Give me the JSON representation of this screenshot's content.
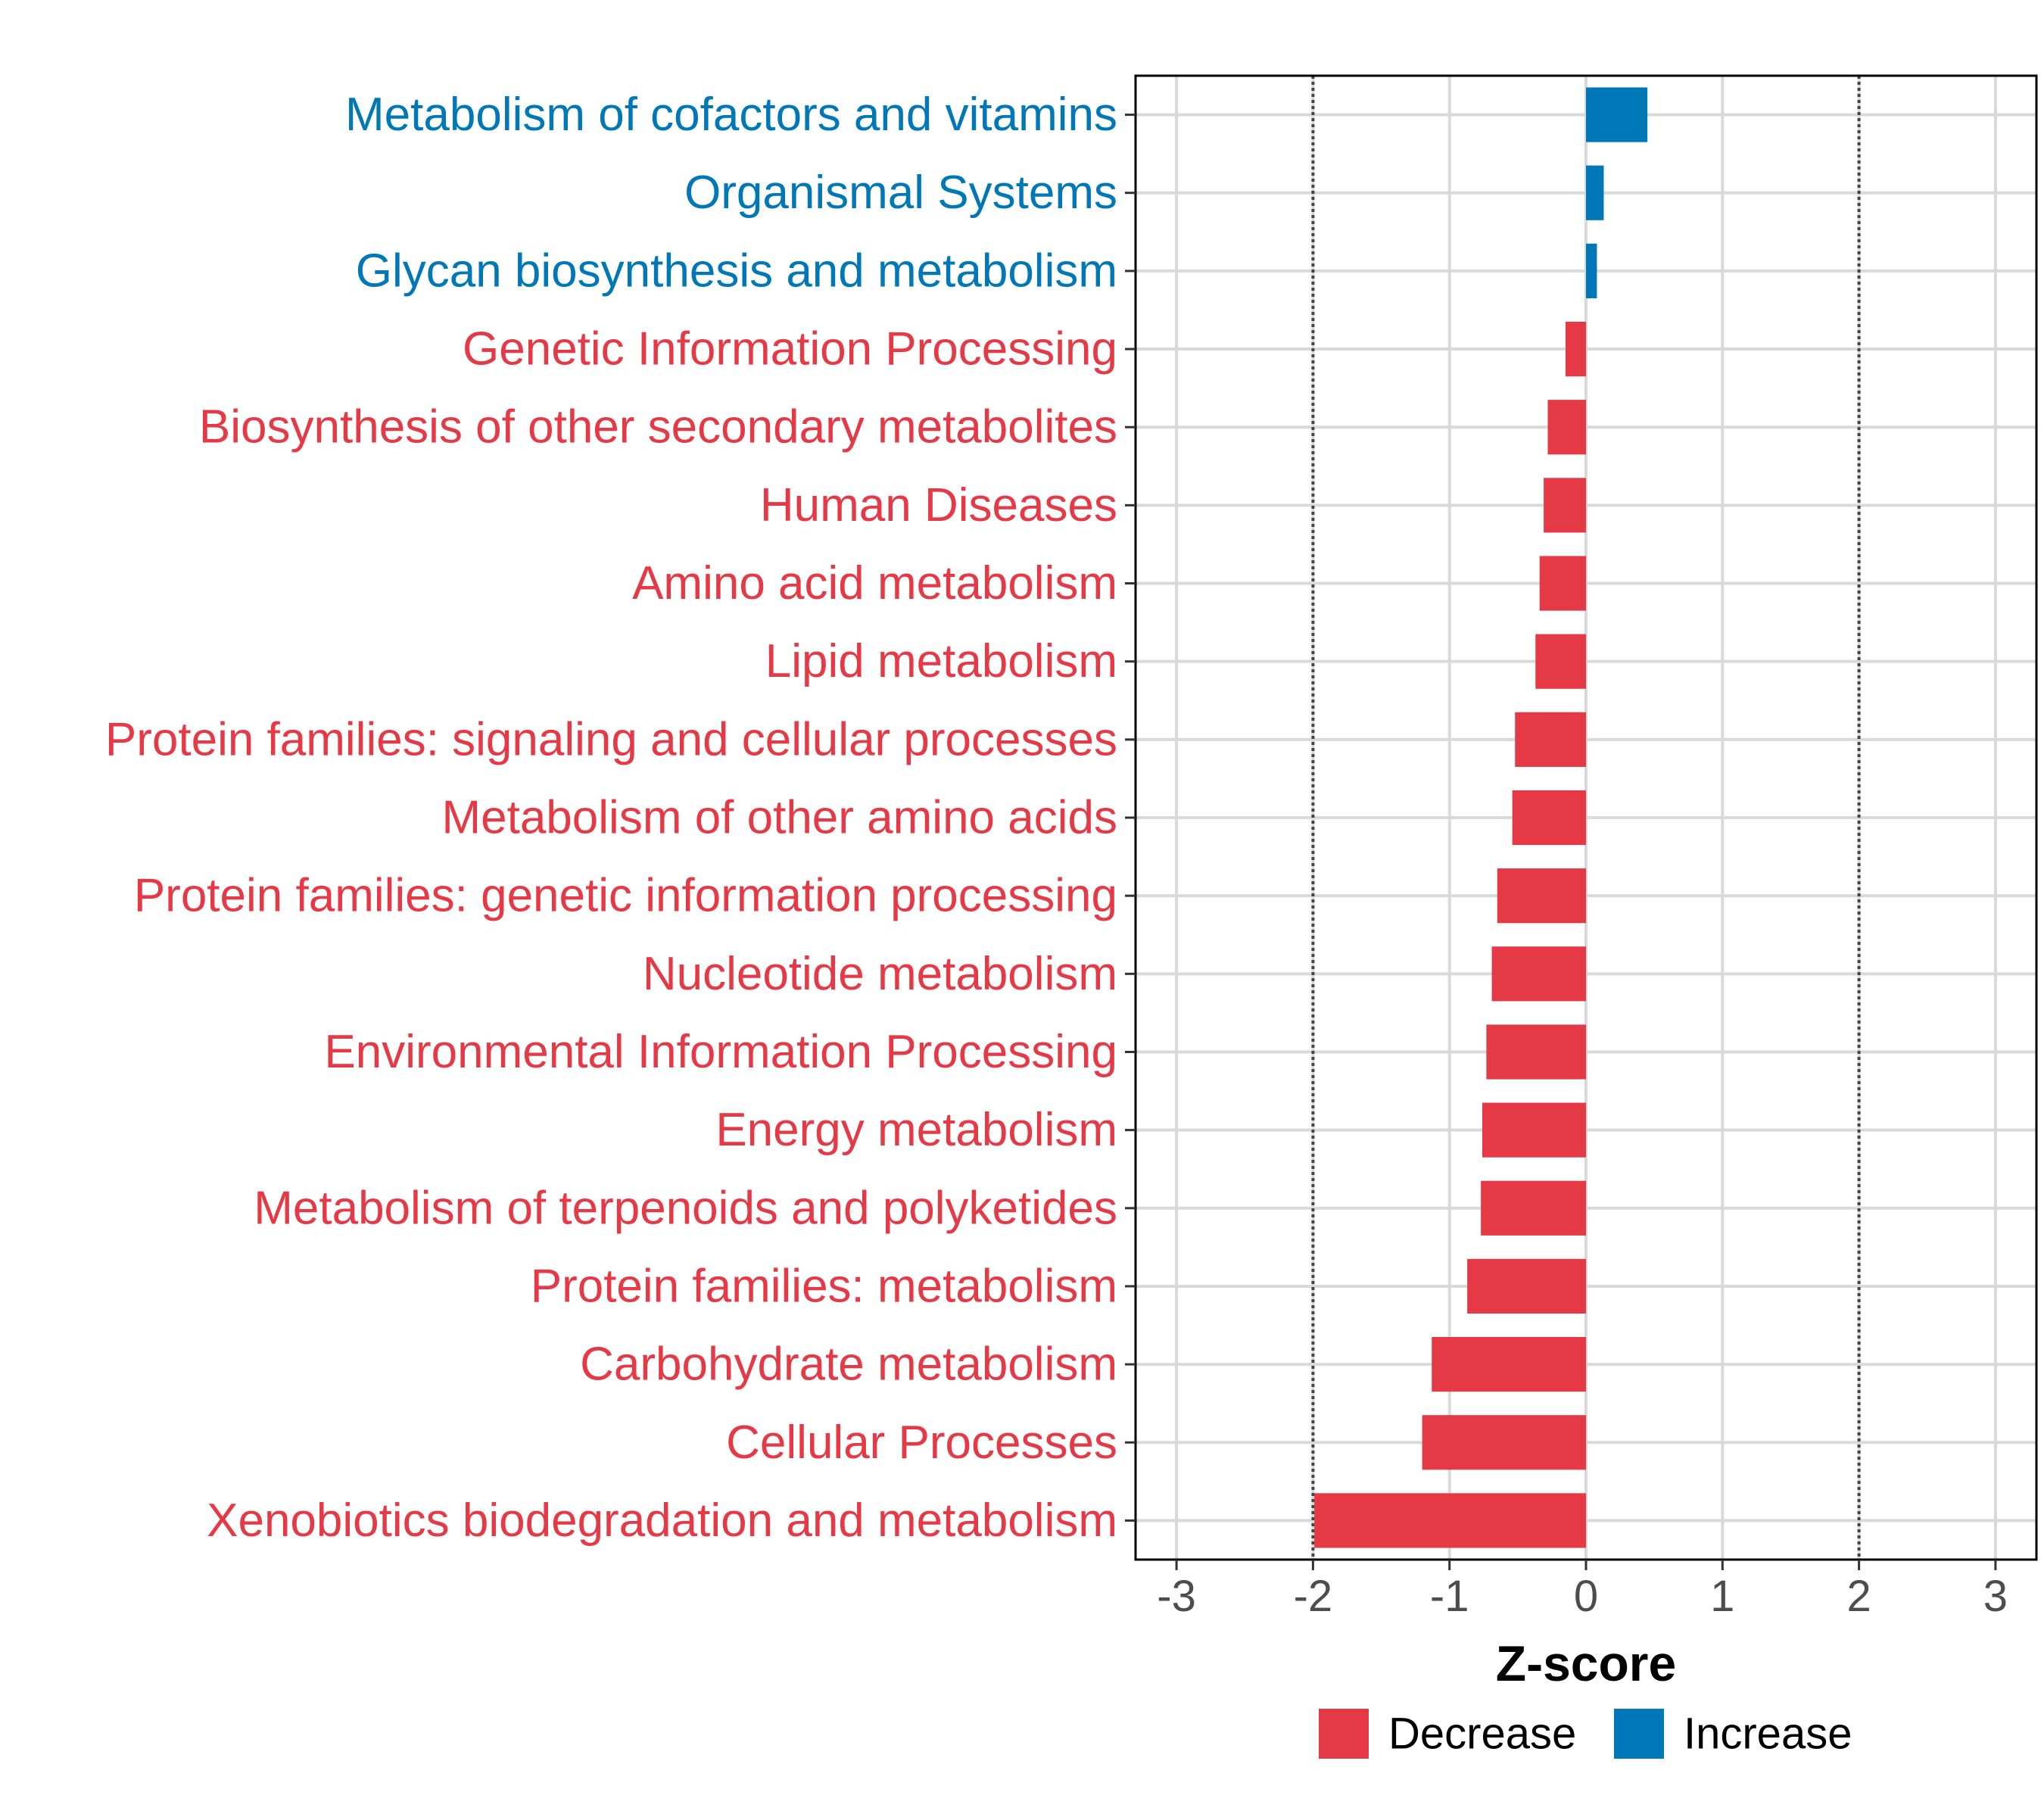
{
  "chart_data": {
    "type": "bar",
    "orientation": "horizontal",
    "categories": [
      "Metabolism of cofactors and vitamins",
      "Organismal Systems",
      "Glycan biosynthesis and metabolism",
      "Genetic Information Processing",
      "Biosynthesis of other secondary metabolites",
      "Human Diseases",
      "Amino acid metabolism",
      "Lipid metabolism",
      "Protein families: signaling and cellular processes",
      "Metabolism of other amino acids",
      "Protein families: genetic information processing",
      "Nucleotide metabolism",
      "Environmental Information Processing",
      "Energy metabolism",
      "Metabolism of terpenoids and polyketides",
      "Protein families: metabolism",
      "Carbohydrate metabolism",
      "Cellular Processes",
      "Xenobiotics biodegradation and metabolism"
    ],
    "values": [
      0.45,
      0.13,
      0.08,
      -0.15,
      -0.28,
      -0.31,
      -0.34,
      -0.37,
      -0.52,
      -0.54,
      -0.65,
      -0.69,
      -0.73,
      -0.76,
      -0.77,
      -0.87,
      -1.13,
      -1.2,
      -1.99
    ],
    "groups": [
      "Increase",
      "Increase",
      "Increase",
      "Decrease",
      "Decrease",
      "Decrease",
      "Decrease",
      "Decrease",
      "Decrease",
      "Decrease",
      "Decrease",
      "Decrease",
      "Decrease",
      "Decrease",
      "Decrease",
      "Decrease",
      "Decrease",
      "Decrease",
      "Decrease"
    ],
    "xlabel": "Z-score",
    "xlim": [
      -3.3,
      3.3
    ],
    "xticks": [
      -3,
      -2,
      -1,
      0,
      1,
      2,
      3
    ],
    "xtick_labels": [
      "-3",
      "-2",
      "-1",
      "0",
      "1",
      "2",
      "3"
    ],
    "reference_lines": [
      -2,
      2
    ],
    "legend": {
      "position": "bottom",
      "items": [
        {
          "label": "Decrease",
          "color": "#E63946"
        },
        {
          "label": "Increase",
          "color": "#0077B6"
        }
      ]
    },
    "grid": true
  }
}
